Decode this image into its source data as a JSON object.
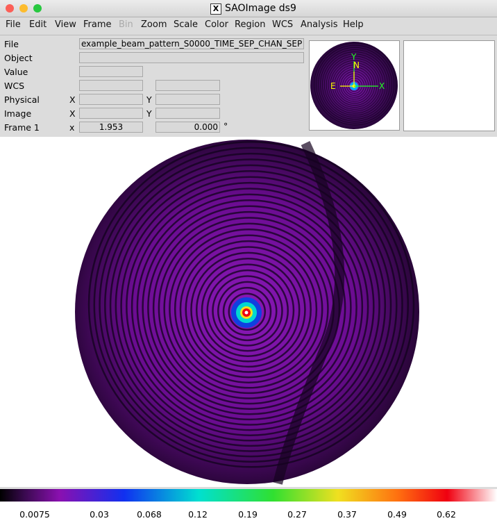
{
  "window": {
    "title": "SAOImage ds9"
  },
  "menu": [
    "File",
    "Edit",
    "View",
    "Frame",
    "Bin",
    "Zoom",
    "Scale",
    "Color",
    "Region",
    "WCS",
    "Analysis",
    "Help"
  ],
  "info": {
    "file_label": "File",
    "file_value": "example_beam_pattern_S0000_TIME_SEP_CHAN_SEP",
    "object_label": "Object",
    "value_label": "Value",
    "wcs_label": "WCS",
    "physical_label": "Physical",
    "image_label": "Image",
    "frame_label": "Frame 1",
    "x_upper": "X",
    "y_upper": "Y",
    "x_lower": "x",
    "frame_x": "1.953",
    "frame_y": "0.000",
    "degree": "°"
  },
  "panner": {
    "north": "N",
    "east": "E",
    "x_axis": "X",
    "y_axis": "Y"
  },
  "colorbar": {
    "ticks": [
      "0.0075",
      "0.03",
      "0.068",
      "0.12",
      "0.19",
      "0.27",
      "0.37",
      "0.49",
      "0.62"
    ]
  }
}
